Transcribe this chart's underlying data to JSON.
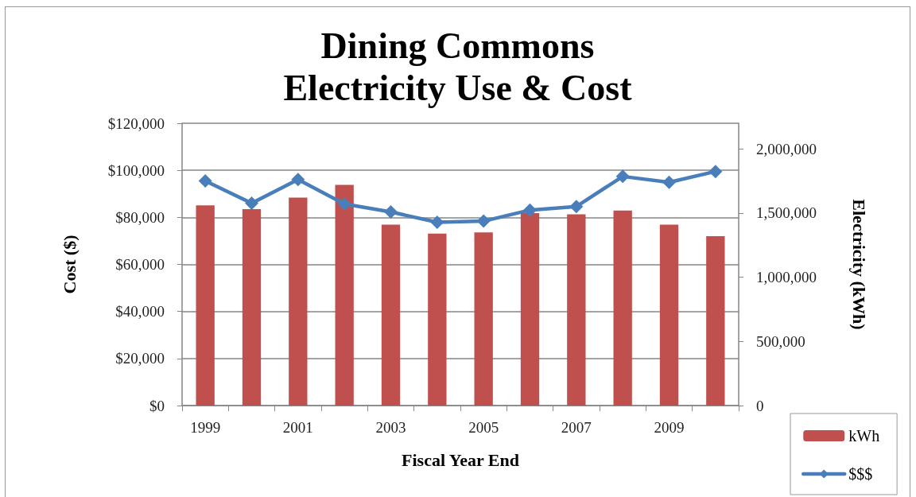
{
  "chart_data": {
    "type": "bar",
    "title": "Dining Commons\nElectricity Use & Cost",
    "xlabel": "Fiscal Year End",
    "ylabel": "Cost ($)",
    "y2label": "Electricity (kWh)",
    "categories": [
      "1999",
      null,
      "2001",
      null,
      "2003",
      null,
      "2005",
      null,
      "2007",
      null,
      "2009",
      null
    ],
    "series": [
      {
        "name": "kWh",
        "axis": "y2",
        "color": "#c0504d",
        "values": [
          1560000,
          1530000,
          1620000,
          1720000,
          1410000,
          1340000,
          1350000,
          1500000,
          1490000,
          1520000,
          1410000,
          1320000
        ]
      },
      {
        "name": "$$$",
        "type": "line",
        "color": "#4a7ebb",
        "values": [
          95500,
          86000,
          96100,
          85700,
          82300,
          77900,
          78400,
          83100,
          84600,
          97400,
          94900,
          99500
        ]
      }
    ],
    "ylim": [
      0,
      120000
    ],
    "yticks": [
      {
        "value": 0,
        "label": "$0"
      },
      {
        "value": 20000,
        "label": "$20,000"
      },
      {
        "value": 40000,
        "label": "$40,000"
      },
      {
        "value": 60000,
        "label": "$60,000"
      },
      {
        "value": 80000,
        "label": "$80,000"
      },
      {
        "value": 100000,
        "label": "$100,000"
      },
      {
        "value": 120000,
        "label": "$120,000"
      }
    ],
    "y2lim": [
      0,
      2200000
    ],
    "y2ticks": [
      0,
      {
        "value": 500000,
        "label": "500,000"
      },
      {
        "value": 1000000,
        "label": "1,000,000"
      },
      {
        "value": 1500000,
        "label": "1,500,000"
      },
      {
        "value": 2000000,
        "label": "2,000,000"
      }
    ],
    "grid": "y",
    "legend": "bottom right",
    "marker": "diamond"
  }
}
